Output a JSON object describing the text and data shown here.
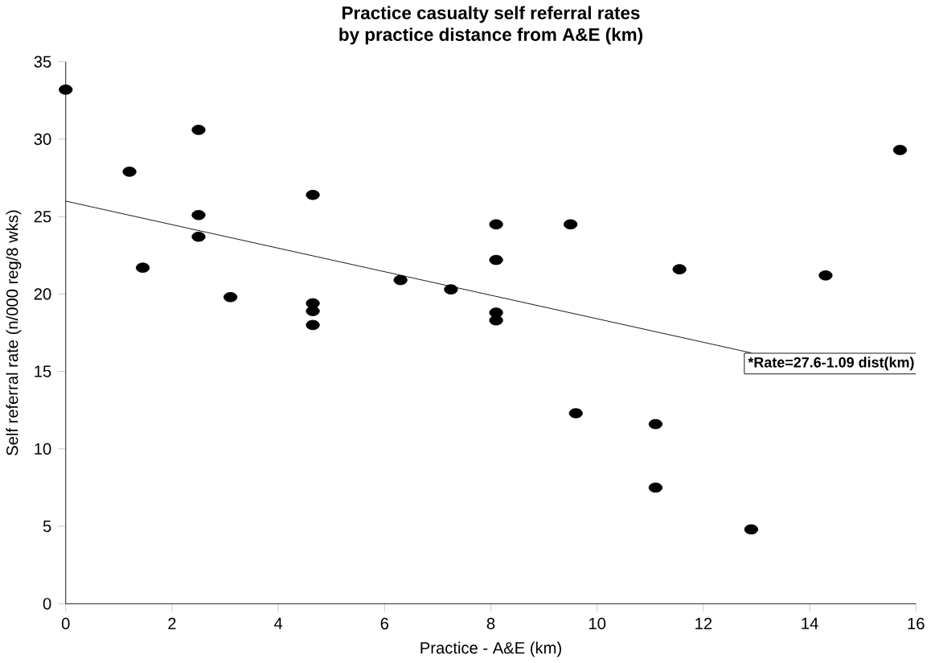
{
  "chart_data": {
    "type": "scatter",
    "title": "Practice  casualty self referral rates\nby practice distance from A&E (km)",
    "xlabel": "Practice - A&E (km)",
    "ylabel": "Self referral rate (n/000 reg/8 wks)",
    "xlim": [
      0,
      16
    ],
    "xticks": [
      0,
      2,
      4,
      6,
      8,
      10,
      12,
      14,
      16
    ],
    "ylim": [
      0,
      35
    ],
    "yticks": [
      0,
      5,
      10,
      15,
      20,
      25,
      30,
      35
    ],
    "grid": false,
    "marker": "circle",
    "series": [
      {
        "color": "#000000",
        "x": [
          0,
          1.2,
          1.45,
          2.5,
          2.5,
          2.5,
          3.1,
          4.65,
          4.65,
          4.65,
          4.65,
          6.3,
          7.25,
          8.1,
          8.1,
          8.1,
          8.1,
          9.5,
          9.6,
          11.1,
          11.1,
          11.55,
          12.9,
          14.3,
          15.7
        ],
        "values": [
          33.2,
          27.9,
          21.7,
          30.6,
          25.1,
          23.7,
          19.8,
          26.4,
          19.4,
          18.9,
          18.0,
          20.9,
          20.3,
          24.5,
          22.2,
          18.8,
          18.3,
          24.5,
          12.3,
          11.6,
          7.5,
          21.6,
          4.8,
          21.2,
          29.3
        ]
      },
      {
        "type": "line",
        "color": "#000000",
        "marker": "none",
        "x": [
          0,
          12.9
        ],
        "values": [
          26,
          16.2
        ]
      }
    ],
    "annotations": [
      {
        "text": "*Rate=27.6-1.09 dist(km)",
        "x": 12.9,
        "y": 16.2
      }
    ]
  }
}
